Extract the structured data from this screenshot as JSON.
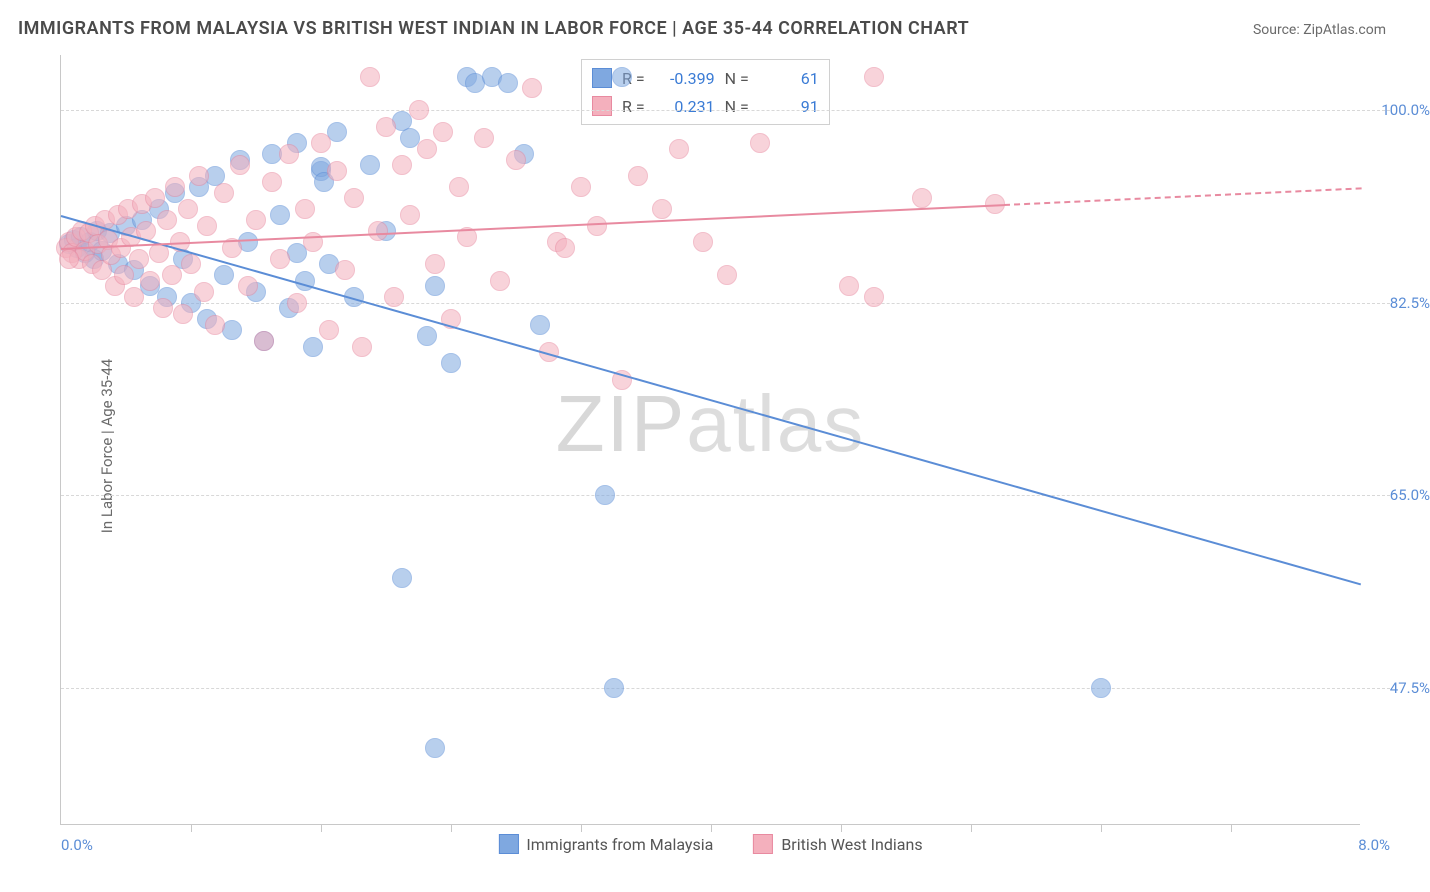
{
  "title": "IMMIGRANTS FROM MALAYSIA VS BRITISH WEST INDIAN IN LABOR FORCE | AGE 35-44 CORRELATION CHART",
  "source": "Source: ZipAtlas.com",
  "ylabel": "In Labor Force | Age 35-44",
  "watermark_a": "ZIP",
  "watermark_b": "atlas",
  "chart": {
    "type": "scatter",
    "x_range": [
      0.0,
      8.0
    ],
    "x_label_min": "0.0%",
    "x_label_max": "8.0%",
    "y_range": [
      35.0,
      105.0
    ],
    "y_ticks": [
      47.5,
      65.0,
      82.5,
      100.0
    ],
    "y_tick_labels": [
      "47.5%",
      "65.0%",
      "82.5%",
      "100.0%"
    ],
    "x_minor_ticks": [
      0.8,
      1.6,
      2.4,
      3.2,
      4.0,
      4.8,
      5.6,
      6.4,
      7.2
    ],
    "background_color": "#ffffff",
    "grid_color": "#d8d8d8",
    "axis_label_color": "#5b8dd6",
    "marker_radius": 10,
    "marker_opacity": 0.55,
    "series": [
      {
        "name": "Immigrants from Malaysia",
        "color": "#7fa8e0",
        "stroke": "#5b8dd6",
        "reg": {
          "x1": 0.0,
          "y1": 90.5,
          "x2": 8.0,
          "y2": 57.0,
          "solid_until_x": 8.0
        },
        "stats": {
          "R": "-0.399",
          "N": "61"
        },
        "points": [
          [
            0.05,
            87.8
          ],
          [
            0.08,
            88.2
          ],
          [
            0.1,
            87.5
          ],
          [
            0.12,
            88.5
          ],
          [
            0.15,
            87.0
          ],
          [
            0.18,
            88.0
          ],
          [
            0.2,
            86.5
          ],
          [
            0.22,
            89.0
          ],
          [
            0.25,
            87.2
          ],
          [
            0.3,
            88.8
          ],
          [
            0.35,
            86.0
          ],
          [
            0.4,
            89.5
          ],
          [
            0.45,
            85.5
          ],
          [
            0.5,
            90.0
          ],
          [
            0.55,
            84.0
          ],
          [
            0.6,
            91.0
          ],
          [
            0.65,
            83.0
          ],
          [
            0.7,
            92.5
          ],
          [
            0.75,
            86.5
          ],
          [
            0.8,
            82.5
          ],
          [
            0.85,
            93.0
          ],
          [
            0.9,
            81.0
          ],
          [
            0.95,
            94.0
          ],
          [
            1.0,
            85.0
          ],
          [
            1.05,
            80.0
          ],
          [
            1.1,
            95.5
          ],
          [
            1.15,
            88.0
          ],
          [
            1.2,
            83.5
          ],
          [
            1.25,
            79.0
          ],
          [
            1.3,
            96.0
          ],
          [
            1.35,
            90.5
          ],
          [
            1.4,
            82.0
          ],
          [
            1.45,
            97.0
          ],
          [
            1.5,
            84.5
          ],
          [
            1.55,
            78.5
          ],
          [
            1.6,
            94.5
          ],
          [
            1.65,
            86.0
          ],
          [
            1.7,
            98.0
          ],
          [
            1.8,
            83.0
          ],
          [
            1.9,
            95.0
          ],
          [
            1.6,
            94.8
          ],
          [
            1.62,
            93.5
          ],
          [
            2.0,
            89.0
          ],
          [
            2.1,
            99.0
          ],
          [
            2.15,
            97.5
          ],
          [
            2.25,
            79.5
          ],
          [
            2.3,
            84.0
          ],
          [
            2.4,
            77.0
          ],
          [
            2.5,
            103.0
          ],
          [
            2.55,
            102.5
          ],
          [
            2.65,
            103.0
          ],
          [
            2.75,
            102.5
          ],
          [
            2.85,
            96.0
          ],
          [
            2.95,
            80.5
          ],
          [
            3.45,
            103.0
          ],
          [
            2.3,
            42.0
          ],
          [
            2.1,
            57.5
          ],
          [
            3.35,
            65.0
          ],
          [
            3.4,
            47.5
          ],
          [
            6.4,
            47.5
          ],
          [
            1.45,
            87.0
          ]
        ]
      },
      {
        "name": "British West Indians",
        "color": "#f4b0bd",
        "stroke": "#e88aa0",
        "reg": {
          "x1": 0.0,
          "y1": 87.5,
          "x2": 8.0,
          "y2": 93.0,
          "solid_until_x": 5.8
        },
        "stats": {
          "R": "0.231",
          "N": "91"
        },
        "points": [
          [
            0.03,
            87.5
          ],
          [
            0.05,
            88.0
          ],
          [
            0.07,
            87.0
          ],
          [
            0.09,
            88.5
          ],
          [
            0.11,
            86.5
          ],
          [
            0.13,
            89.0
          ],
          [
            0.15,
            87.2
          ],
          [
            0.17,
            88.8
          ],
          [
            0.19,
            86.0
          ],
          [
            0.21,
            89.5
          ],
          [
            0.23,
            87.8
          ],
          [
            0.25,
            85.5
          ],
          [
            0.27,
            90.0
          ],
          [
            0.29,
            88.2
          ],
          [
            0.31,
            86.8
          ],
          [
            0.33,
            84.0
          ],
          [
            0.35,
            90.5
          ],
          [
            0.37,
            87.5
          ],
          [
            0.39,
            85.0
          ],
          [
            0.41,
            91.0
          ],
          [
            0.43,
            88.5
          ],
          [
            0.45,
            83.0
          ],
          [
            0.48,
            86.5
          ],
          [
            0.5,
            91.5
          ],
          [
            0.52,
            89.0
          ],
          [
            0.55,
            84.5
          ],
          [
            0.58,
            92.0
          ],
          [
            0.6,
            87.0
          ],
          [
            0.63,
            82.0
          ],
          [
            0.65,
            90.0
          ],
          [
            0.68,
            85.0
          ],
          [
            0.7,
            93.0
          ],
          [
            0.73,
            88.0
          ],
          [
            0.75,
            81.5
          ],
          [
            0.78,
            91.0
          ],
          [
            0.8,
            86.0
          ],
          [
            0.85,
            94.0
          ],
          [
            0.88,
            83.5
          ],
          [
            0.9,
            89.5
          ],
          [
            0.95,
            80.5
          ],
          [
            1.0,
            92.5
          ],
          [
            1.05,
            87.5
          ],
          [
            1.1,
            95.0
          ],
          [
            1.15,
            84.0
          ],
          [
            1.2,
            90.0
          ],
          [
            1.25,
            79.0
          ],
          [
            1.3,
            93.5
          ],
          [
            1.35,
            86.5
          ],
          [
            1.4,
            96.0
          ],
          [
            1.45,
            82.5
          ],
          [
            1.5,
            91.0
          ],
          [
            1.55,
            88.0
          ],
          [
            1.6,
            97.0
          ],
          [
            1.65,
            80.0
          ],
          [
            1.7,
            94.5
          ],
          [
            1.75,
            85.5
          ],
          [
            1.8,
            92.0
          ],
          [
            1.85,
            78.5
          ],
          [
            1.9,
            103.0
          ],
          [
            1.95,
            89.0
          ],
          [
            2.0,
            98.5
          ],
          [
            2.05,
            83.0
          ],
          [
            2.1,
            95.0
          ],
          [
            2.15,
            90.5
          ],
          [
            2.2,
            100.0
          ],
          [
            2.25,
            96.5
          ],
          [
            2.3,
            86.0
          ],
          [
            2.35,
            98.0
          ],
          [
            2.4,
            81.0
          ],
          [
            2.45,
            93.0
          ],
          [
            2.5,
            88.5
          ],
          [
            2.6,
            97.5
          ],
          [
            2.7,
            84.5
          ],
          [
            2.8,
            95.5
          ],
          [
            2.9,
            102.0
          ],
          [
            3.0,
            78.0
          ],
          [
            3.05,
            88.0
          ],
          [
            3.1,
            87.5
          ],
          [
            3.2,
            93.0
          ],
          [
            3.3,
            89.5
          ],
          [
            3.45,
            75.5
          ],
          [
            3.55,
            94.0
          ],
          [
            3.7,
            91.0
          ],
          [
            3.8,
            96.5
          ],
          [
            3.95,
            88.0
          ],
          [
            4.1,
            85.0
          ],
          [
            4.3,
            97.0
          ],
          [
            4.85,
            84.0
          ],
          [
            5.0,
            103.0
          ],
          [
            5.0,
            83.0
          ],
          [
            5.3,
            92.0
          ],
          [
            5.75,
            91.5
          ],
          [
            0.05,
            86.5
          ]
        ]
      }
    ]
  },
  "legend": {
    "s1": "Immigrants from Malaysia",
    "s2": "British West Indians"
  },
  "stat_labels": {
    "R": "R =",
    "N": "N ="
  }
}
